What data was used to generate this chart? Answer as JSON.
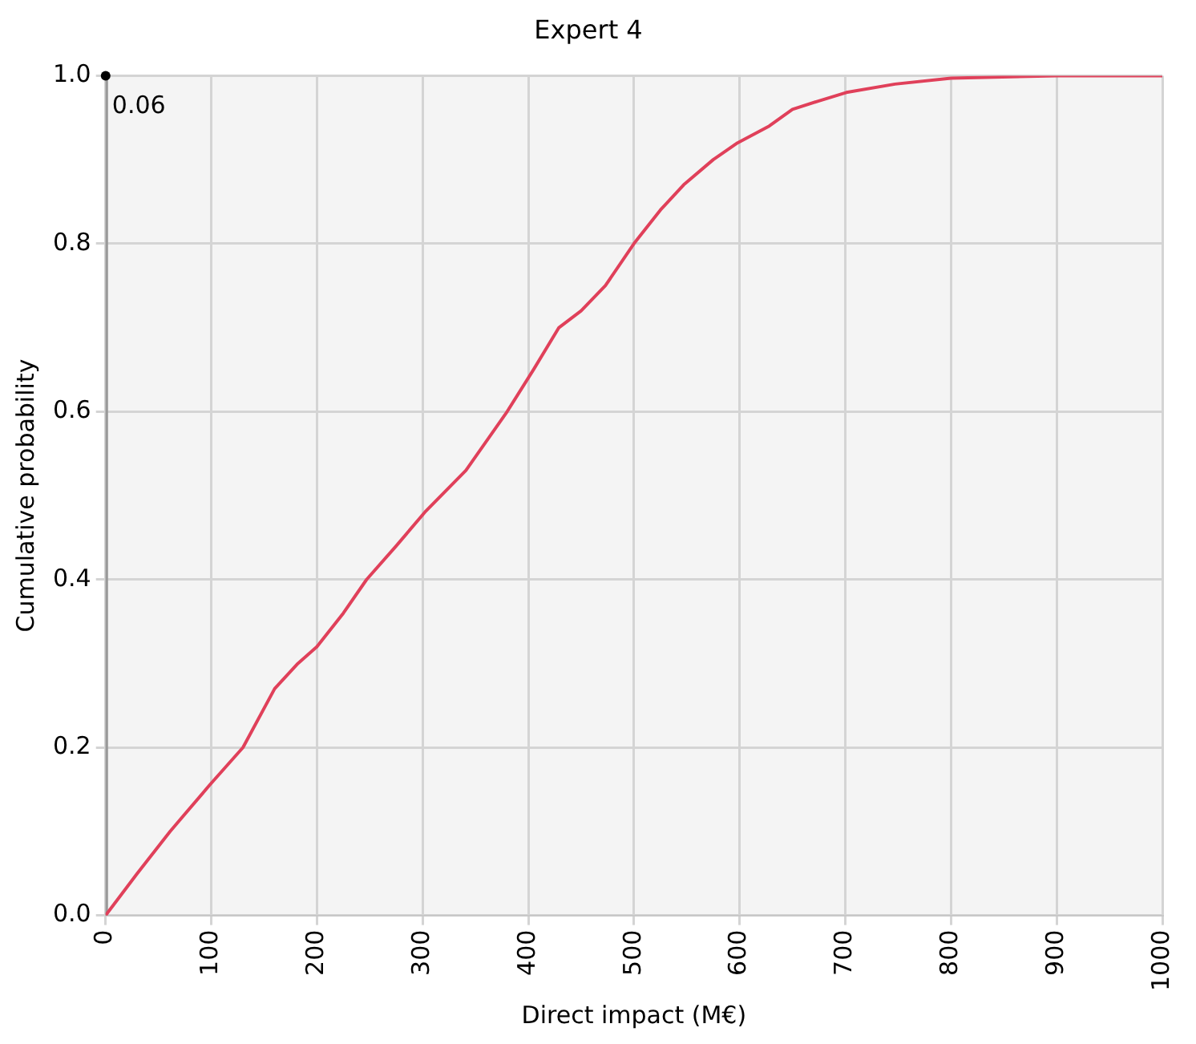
{
  "chart_data": {
    "type": "line",
    "title": "Expert 4",
    "xlabel": "Direct impact (M€)",
    "ylabel": "Cumulative probability",
    "x": [
      0,
      30,
      61,
      99,
      130,
      160,
      182,
      200,
      225,
      247,
      275,
      302,
      341,
      380,
      405,
      429,
      450,
      473,
      500,
      525,
      547,
      575,
      598,
      628,
      650,
      675,
      701,
      747,
      800,
      900,
      1000
    ],
    "series": [
      {
        "color": "#e0405a",
        "values": [
          0,
          0.05,
          0.1,
          0.156,
          0.2,
          0.27,
          0.3,
          0.32,
          0.36,
          0.4,
          0.44,
          0.48,
          0.53,
          0.6,
          0.65,
          0.7,
          0.72,
          0.75,
          0.8,
          0.84,
          0.87,
          0.9,
          0.92,
          0.94,
          0.96,
          0.97,
          0.98,
          0.99,
          0.997,
          1.0,
          1.0
        ]
      }
    ],
    "xlim": [
      0,
      1000
    ],
    "xticks": [
      0,
      100,
      200,
      300,
      400,
      500,
      600,
      700,
      800,
      900,
      1000
    ],
    "ylim": [
      0,
      1
    ],
    "yticks": [
      {
        "value": 0,
        "label": "0.0"
      },
      {
        "value": 0.2,
        "label": "0.2"
      },
      {
        "value": 0.4,
        "label": "0.4"
      },
      {
        "value": 0.6,
        "label": "0.6"
      },
      {
        "value": 0.8,
        "label": "0.8"
      },
      {
        "value": 1,
        "label": "1.0"
      }
    ],
    "ref_lines": [
      {
        "axis": "x",
        "value": 0.06,
        "label": "0.06",
        "color": "#999999"
      }
    ],
    "grid": true,
    "legend": false,
    "marker": "none",
    "line_style": "solid"
  }
}
